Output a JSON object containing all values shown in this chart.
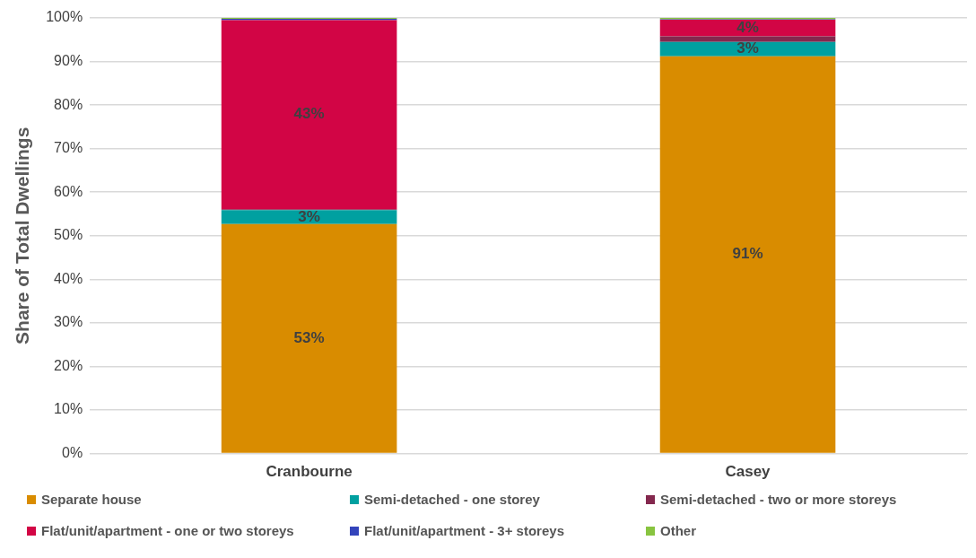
{
  "chart_data": {
    "type": "bar",
    "stacked": true,
    "ylabel": "Share of Total Dwellings",
    "categories": [
      "Cranbourne",
      "Casey"
    ],
    "series": [
      {
        "name": "Separate house",
        "color": "#d98c00",
        "values": [
          52.7,
          91.2
        ],
        "value_labels": [
          "53%",
          "91%"
        ]
      },
      {
        "name": "Semi-detached - one storey",
        "color": "#00a0a0",
        "values": [
          3.2,
          3.3
        ],
        "value_labels": [
          "3%",
          "3%"
        ]
      },
      {
        "name": "Semi-detached - two or more storeys",
        "color": "#84284e",
        "values": [
          0.2,
          1.3
        ],
        "value_labels": [
          null,
          null
        ]
      },
      {
        "name": "Flat/unit/apartment - one or two storeys",
        "color": "#d20545",
        "values": [
          43.4,
          3.8
        ],
        "value_labels": [
          "43%",
          "4%"
        ]
      },
      {
        "name": "Flat/unit/apartment - 3+ storeys",
        "color": "#3344bb",
        "values": [
          0.3,
          0.1
        ],
        "value_labels": [
          null,
          null
        ]
      },
      {
        "name": "Other",
        "color": "#88c440",
        "values": [
          0.2,
          0.3
        ],
        "value_labels": [
          null,
          null
        ]
      }
    ],
    "ylim": [
      0,
      100
    ],
    "yticks": [
      {
        "value": 0,
        "label": "0%"
      },
      {
        "value": 10,
        "label": "10%"
      },
      {
        "value": 20,
        "label": "20%"
      },
      {
        "value": 30,
        "label": "30%"
      },
      {
        "value": 40,
        "label": "40%"
      },
      {
        "value": 50,
        "label": "50%"
      },
      {
        "value": 60,
        "label": "60%"
      },
      {
        "value": 70,
        "label": "70%"
      },
      {
        "value": 80,
        "label": "80%"
      },
      {
        "value": 90,
        "label": "90%"
      },
      {
        "value": 100,
        "label": "100%"
      }
    ],
    "grid": "y",
    "legend": "bottom"
  }
}
